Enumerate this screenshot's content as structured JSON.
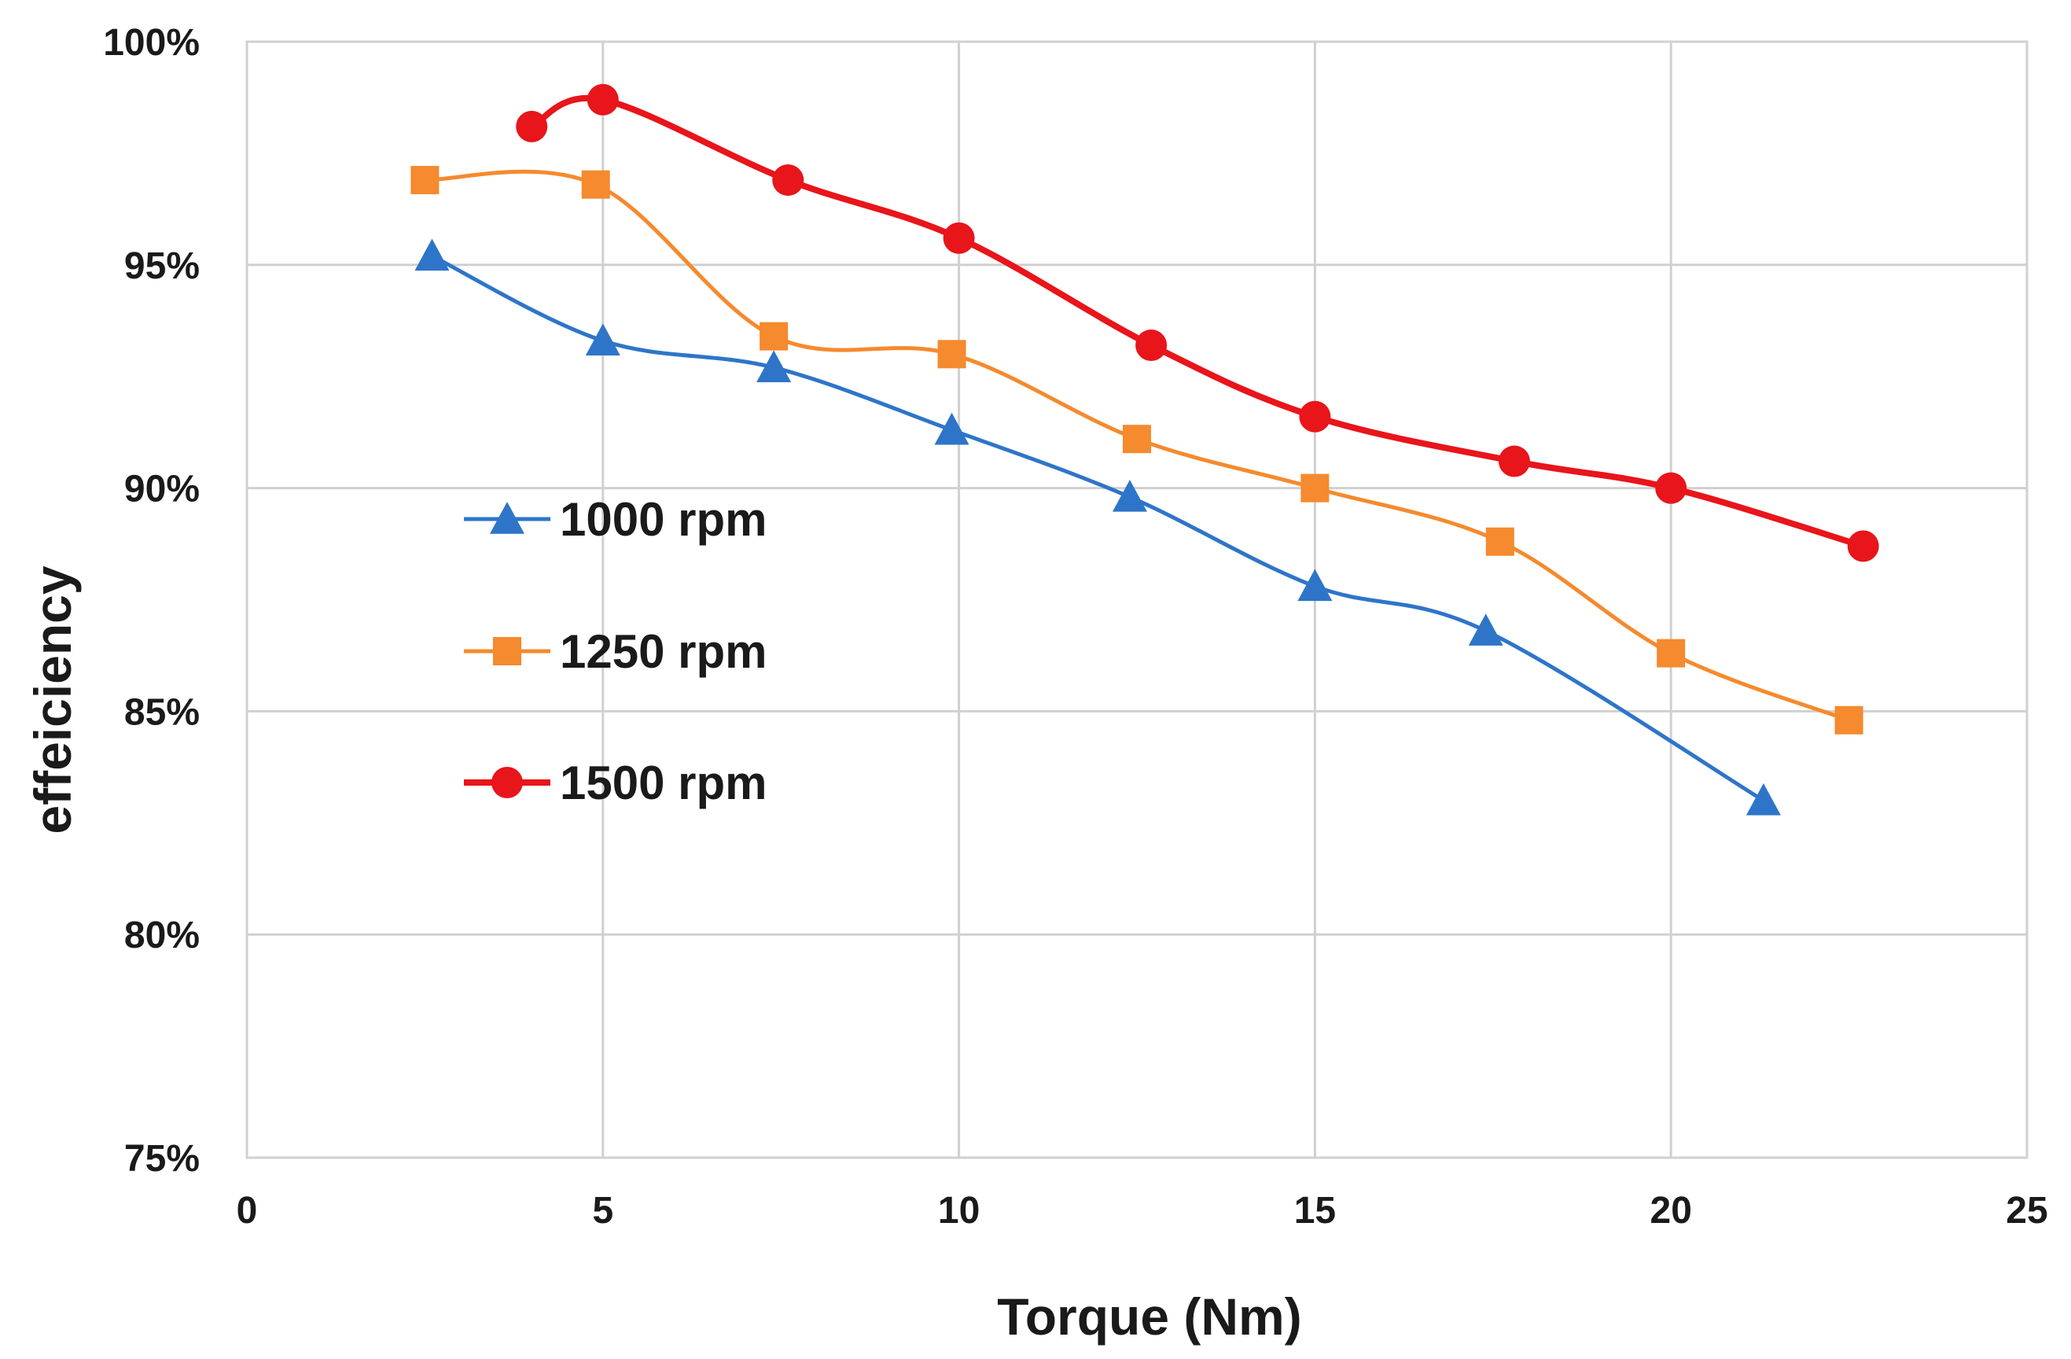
{
  "chart_data": {
    "type": "line",
    "title": "",
    "xlabel": "Torque (Nm)",
    "ylabel": "effeiciency",
    "xlim": [
      0,
      25
    ],
    "ylim": [
      75,
      100
    ],
    "x_ticks": [
      0,
      5,
      10,
      15,
      20,
      25
    ],
    "x_tick_labels": [
      "0",
      "5",
      "10",
      "15",
      "20",
      "25"
    ],
    "y_ticks": [
      75,
      80,
      85,
      90,
      95,
      100
    ],
    "y_tick_labels": [
      "75%",
      "80%",
      "85%",
      "90%",
      "95%",
      "100%"
    ],
    "grid": true,
    "legend_position": "left-middle",
    "series": [
      {
        "name": "1000 rpm",
        "color": "#2E75C9",
        "marker": "triangle",
        "x": [
          2.6,
          5.0,
          7.4,
          9.9,
          12.4,
          15.0,
          17.4,
          21.3
        ],
        "y": [
          95.2,
          93.3,
          92.7,
          91.3,
          89.8,
          87.8,
          86.8,
          83.0
        ]
      },
      {
        "name": "1250 rpm",
        "color": "#F58A2E",
        "marker": "square",
        "x": [
          2.5,
          4.9,
          7.4,
          9.9,
          12.5,
          15.0,
          17.6,
          20.0,
          22.5
        ],
        "y": [
          96.9,
          96.8,
          93.4,
          93.0,
          91.1,
          90.0,
          88.8,
          86.3,
          84.8
        ]
      },
      {
        "name": "1500 rpm",
        "color": "#E8151B",
        "marker": "circle",
        "x": [
          4.0,
          5.0,
          7.6,
          10.0,
          12.7,
          15.0,
          17.8,
          20.0,
          22.7
        ],
        "y": [
          98.1,
          98.7,
          96.9,
          95.6,
          93.2,
          91.6,
          90.6,
          90.0,
          88.7
        ]
      }
    ]
  }
}
